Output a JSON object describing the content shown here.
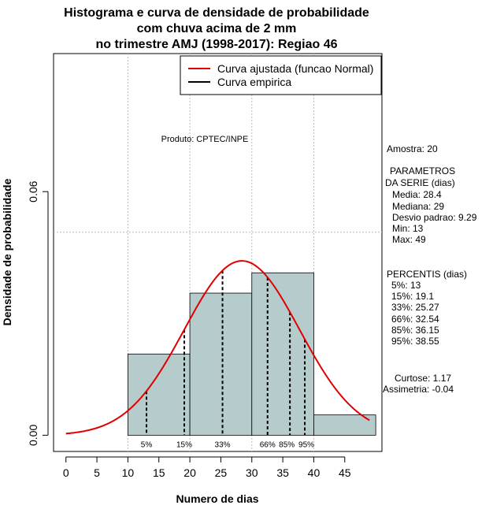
{
  "chart_data": {
    "type": "bar",
    "title_lines": [
      "Histograma e curva de densidade de probabilidade",
      "com chuva acima de 2 mm",
      "no trimestre AMJ (1998-2017): Regiao 46"
    ],
    "xlabel": "Numero de dias",
    "ylabel": "Densidade de probabilidade",
    "xlim": [
      -2,
      51
    ],
    "ylim": [
      -0.004,
      0.094
    ],
    "x_ticks": [
      0,
      5,
      10,
      15,
      20,
      25,
      30,
      35,
      40,
      45
    ],
    "y_ticks": [
      0.0,
      0.06
    ],
    "y_tick_labels": [
      "0.00",
      "0.06"
    ],
    "v_gridlines": [
      10,
      20,
      30,
      40
    ],
    "h_gridline": 0.05,
    "bins": [
      {
        "x0": 10,
        "x1": 20,
        "density": 0.02
      },
      {
        "x0": 20,
        "x1": 30,
        "density": 0.035
      },
      {
        "x0": 30,
        "x1": 40,
        "density": 0.04
      },
      {
        "x0": 40,
        "x1": 50,
        "density": 0.005
      }
    ],
    "bar_color": "#b6cccc",
    "normal_fit": {
      "mean": 28.4,
      "sd": 9.29,
      "x_from": 0,
      "x_to": 49,
      "color": "#e00000"
    },
    "percentile_lines": [
      {
        "label": "5%",
        "value": 13
      },
      {
        "label": "15%",
        "value": 19.1
      },
      {
        "label": "33%",
        "value": 25.27
      },
      {
        "label": "66%",
        "value": 32.54
      },
      {
        "label": "85%",
        "value": 36.15
      },
      {
        "label": "95%",
        "value": 38.55
      }
    ],
    "legend": [
      {
        "label": "Curva ajustada (funcao Normal)",
        "color": "#e00000"
      },
      {
        "label": "Curva empirica",
        "color": "#000000"
      }
    ],
    "legend_position": "top-right",
    "annotation": "Produto: CPTEC/INPE"
  },
  "stats_panel": {
    "amostra": "Amostra: 20",
    "parametros_title_1": "PARAMETROS",
    "parametros_title_2": "DA SERIE (dias)",
    "media": "Media: 28.4",
    "mediana": "Mediana: 29",
    "desvio": "Desvio padrao: 9.29",
    "min": "Min: 13",
    "max": "Max: 49",
    "percentis_title": "PERCENTIS (dias)",
    "p5": "5%: 13",
    "p15": "15%: 19.1",
    "p33": "33%: 25.27",
    "p66": "66%: 32.54",
    "p85": "85%: 36.15",
    "p95": "95%: 38.55",
    "curtose": "Curtose: 1.17",
    "assimetria": "Assimetria: -0.04"
  }
}
